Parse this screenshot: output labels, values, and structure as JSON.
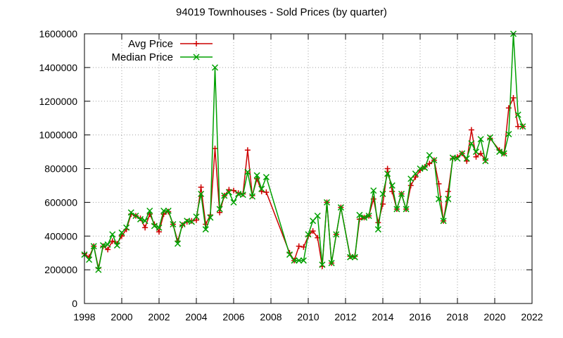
{
  "chart_data": {
    "type": "line",
    "title": "94019 Townhouses - Sold Prices (by quarter)",
    "xlabel": "",
    "ylabel": "",
    "xlim": [
      1998,
      2022
    ],
    "ylim": [
      0,
      1600000
    ],
    "x_ticks": [
      1998,
      2000,
      2002,
      2004,
      2006,
      2008,
      2010,
      2012,
      2014,
      2016,
      2018,
      2020,
      2022
    ],
    "y_ticks": [
      0,
      200000,
      400000,
      600000,
      800000,
      1000000,
      1200000,
      1400000,
      1600000
    ],
    "grid": true,
    "legend_position": "top-left",
    "series": [
      {
        "name": "Avg Price",
        "color": "#cc0000",
        "marker": "plus",
        "points": [
          [
            1998.0,
            295000
          ],
          [
            1998.25,
            275000
          ],
          [
            1998.5,
            340000
          ],
          [
            1998.75,
            210000
          ],
          [
            1999.0,
            340000
          ],
          [
            1999.25,
            320000
          ],
          [
            1999.5,
            370000
          ],
          [
            1999.75,
            355000
          ],
          [
            2000.0,
            400000
          ],
          [
            2000.25,
            440000
          ],
          [
            2000.5,
            530000
          ],
          [
            2000.75,
            520000
          ],
          [
            2001.0,
            505000
          ],
          [
            2001.25,
            450000
          ],
          [
            2001.5,
            530000
          ],
          [
            2001.75,
            470000
          ],
          [
            2002.0,
            425000
          ],
          [
            2002.25,
            530000
          ],
          [
            2002.5,
            545000
          ],
          [
            2002.75,
            470000
          ],
          [
            2003.0,
            370000
          ],
          [
            2003.25,
            465000
          ],
          [
            2003.5,
            485000
          ],
          [
            2003.75,
            490000
          ],
          [
            2004.0,
            495000
          ],
          [
            2004.25,
            690000
          ],
          [
            2004.5,
            470000
          ],
          [
            2004.75,
            525000
          ],
          [
            2005.0,
            920000
          ],
          [
            2005.25,
            540000
          ],
          [
            2005.5,
            640000
          ],
          [
            2005.75,
            675000
          ],
          [
            2006.0,
            670000
          ],
          [
            2006.25,
            655000
          ],
          [
            2006.5,
            650000
          ],
          [
            2006.75,
            910000
          ],
          [
            2007.0,
            640000
          ],
          [
            2007.25,
            740000
          ],
          [
            2007.5,
            665000
          ],
          [
            2007.75,
            660000
          ],
          [
            2009.0,
            300000
          ],
          [
            2009.25,
            255000
          ],
          [
            2009.5,
            340000
          ],
          [
            2009.75,
            335000
          ],
          [
            2010.0,
            400000
          ],
          [
            2010.25,
            430000
          ],
          [
            2010.5,
            390000
          ],
          [
            2010.75,
            220000
          ],
          [
            2011.0,
            600000
          ],
          [
            2011.25,
            240000
          ],
          [
            2011.5,
            410000
          ],
          [
            2011.75,
            570000
          ],
          [
            2012.25,
            280000
          ],
          [
            2012.5,
            280000
          ],
          [
            2012.75,
            500000
          ],
          [
            2013.0,
            510000
          ],
          [
            2013.25,
            520000
          ],
          [
            2013.5,
            620000
          ],
          [
            2013.75,
            480000
          ],
          [
            2014.0,
            590000
          ],
          [
            2014.25,
            800000
          ],
          [
            2014.5,
            665000
          ],
          [
            2014.75,
            560000
          ],
          [
            2015.0,
            650000
          ],
          [
            2015.25,
            560000
          ],
          [
            2015.5,
            700000
          ],
          [
            2015.75,
            750000
          ],
          [
            2016.0,
            790000
          ],
          [
            2016.25,
            810000
          ],
          [
            2016.5,
            830000
          ],
          [
            2016.75,
            850000
          ],
          [
            2017.0,
            710000
          ],
          [
            2017.25,
            490000
          ],
          [
            2017.5,
            665000
          ],
          [
            2017.75,
            860000
          ],
          [
            2018.0,
            870000
          ],
          [
            2018.25,
            890000
          ],
          [
            2018.5,
            845000
          ],
          [
            2018.75,
            1030000
          ],
          [
            2019.0,
            870000
          ],
          [
            2019.25,
            890000
          ],
          [
            2019.5,
            850000
          ],
          [
            2019.75,
            980000
          ],
          [
            2020.25,
            910000
          ],
          [
            2020.5,
            890000
          ],
          [
            2020.75,
            1160000
          ],
          [
            2021.0,
            1220000
          ],
          [
            2021.25,
            1050000
          ],
          [
            2021.5,
            1050000
          ]
        ]
      },
      {
        "name": "Median Price",
        "color": "#00a000",
        "marker": "cross",
        "points": [
          [
            1998.0,
            290000
          ],
          [
            1998.25,
            260000
          ],
          [
            1998.5,
            340000
          ],
          [
            1998.75,
            200000
          ],
          [
            1999.0,
            345000
          ],
          [
            1999.25,
            350000
          ],
          [
            1999.5,
            410000
          ],
          [
            1999.75,
            345000
          ],
          [
            2000.0,
            420000
          ],
          [
            2000.25,
            450000
          ],
          [
            2000.5,
            540000
          ],
          [
            2000.75,
            520000
          ],
          [
            2001.0,
            500000
          ],
          [
            2001.25,
            490000
          ],
          [
            2001.5,
            550000
          ],
          [
            2001.75,
            460000
          ],
          [
            2002.0,
            450000
          ],
          [
            2002.25,
            550000
          ],
          [
            2002.5,
            550000
          ],
          [
            2002.75,
            470000
          ],
          [
            2003.0,
            355000
          ],
          [
            2003.25,
            470000
          ],
          [
            2003.5,
            490000
          ],
          [
            2003.75,
            485000
          ],
          [
            2004.0,
            515000
          ],
          [
            2004.25,
            650000
          ],
          [
            2004.5,
            440000
          ],
          [
            2004.75,
            510000
          ],
          [
            2005.0,
            1400000
          ],
          [
            2005.25,
            560000
          ],
          [
            2005.5,
            640000
          ],
          [
            2005.75,
            660000
          ],
          [
            2006.0,
            600000
          ],
          [
            2006.25,
            650000
          ],
          [
            2006.5,
            645000
          ],
          [
            2006.75,
            780000
          ],
          [
            2007.0,
            635000
          ],
          [
            2007.25,
            760000
          ],
          [
            2007.5,
            680000
          ],
          [
            2007.75,
            750000
          ],
          [
            2009.0,
            290000
          ],
          [
            2009.25,
            255000
          ],
          [
            2009.5,
            255000
          ],
          [
            2009.75,
            255000
          ],
          [
            2010.0,
            410000
          ],
          [
            2010.25,
            490000
          ],
          [
            2010.5,
            520000
          ],
          [
            2010.75,
            230000
          ],
          [
            2011.0,
            600000
          ],
          [
            2011.25,
            240000
          ],
          [
            2011.5,
            410000
          ],
          [
            2011.75,
            570000
          ],
          [
            2012.25,
            275000
          ],
          [
            2012.5,
            275000
          ],
          [
            2012.75,
            525000
          ],
          [
            2013.0,
            510000
          ],
          [
            2013.25,
            520000
          ],
          [
            2013.5,
            670000
          ],
          [
            2013.75,
            440000
          ],
          [
            2014.0,
            650000
          ],
          [
            2014.25,
            770000
          ],
          [
            2014.5,
            700000
          ],
          [
            2014.75,
            560000
          ],
          [
            2015.0,
            650000
          ],
          [
            2015.25,
            560000
          ],
          [
            2015.5,
            740000
          ],
          [
            2015.75,
            770000
          ],
          [
            2016.0,
            800000
          ],
          [
            2016.25,
            805000
          ],
          [
            2016.5,
            880000
          ],
          [
            2016.75,
            850000
          ],
          [
            2017.0,
            620000
          ],
          [
            2017.25,
            490000
          ],
          [
            2017.5,
            620000
          ],
          [
            2017.75,
            865000
          ],
          [
            2018.0,
            860000
          ],
          [
            2018.25,
            890000
          ],
          [
            2018.5,
            860000
          ],
          [
            2018.75,
            950000
          ],
          [
            2019.0,
            900000
          ],
          [
            2019.25,
            975000
          ],
          [
            2019.5,
            845000
          ],
          [
            2019.75,
            985000
          ],
          [
            2020.25,
            900000
          ],
          [
            2020.5,
            890000
          ],
          [
            2020.75,
            1005000
          ],
          [
            2021.0,
            1600000
          ],
          [
            2021.25,
            1120000
          ],
          [
            2021.5,
            1050000
          ]
        ]
      }
    ]
  }
}
